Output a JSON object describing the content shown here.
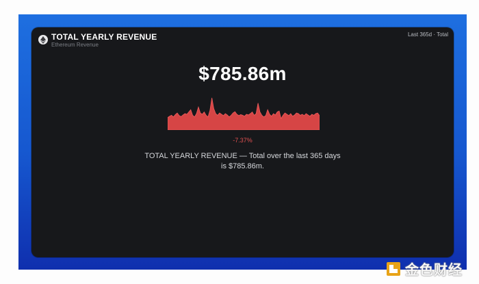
{
  "card": {
    "logo_icon": "ethereum-icon",
    "title": "TOTAL YEARLY REVENUE",
    "subtitle": "Ethereum Revenue",
    "period": "Last 365d · Total",
    "value": "$785.86m",
    "change": "-7.37%",
    "description_line1": "TOTAL YEARLY REVENUE — Total over the last 365 days",
    "description_line2": "is $785.86m.",
    "sparkline_color": "#d64545"
  },
  "chart_data": {
    "type": "area",
    "title": "",
    "xlabel": "",
    "ylabel": "",
    "ylim": [
      0,
      1
    ],
    "values": [
      0.38,
      0.42,
      0.45,
      0.4,
      0.47,
      0.52,
      0.44,
      0.41,
      0.46,
      0.5,
      0.48,
      0.55,
      0.62,
      0.45,
      0.4,
      0.5,
      0.7,
      0.52,
      0.48,
      0.55,
      0.45,
      0.4,
      0.6,
      0.98,
      0.65,
      0.5,
      0.45,
      0.52,
      0.48,
      0.44,
      0.5,
      0.46,
      0.4,
      0.45,
      0.52,
      0.56,
      0.48,
      0.44,
      0.47,
      0.45,
      0.42,
      0.48,
      0.46,
      0.5,
      0.55,
      0.45,
      0.5,
      0.82,
      0.55,
      0.45,
      0.4,
      0.44,
      0.62,
      0.48,
      0.42,
      0.5,
      0.46,
      0.55,
      0.58,
      0.35,
      0.45,
      0.52,
      0.48,
      0.44,
      0.5,
      0.42,
      0.46,
      0.52,
      0.5,
      0.45,
      0.48,
      0.44,
      0.5,
      0.46,
      0.42,
      0.48,
      0.45,
      0.5,
      0.52,
      0.44
    ]
  },
  "watermark": {
    "logo_icon": "jinse-logo-icon",
    "text": "金色财经"
  }
}
